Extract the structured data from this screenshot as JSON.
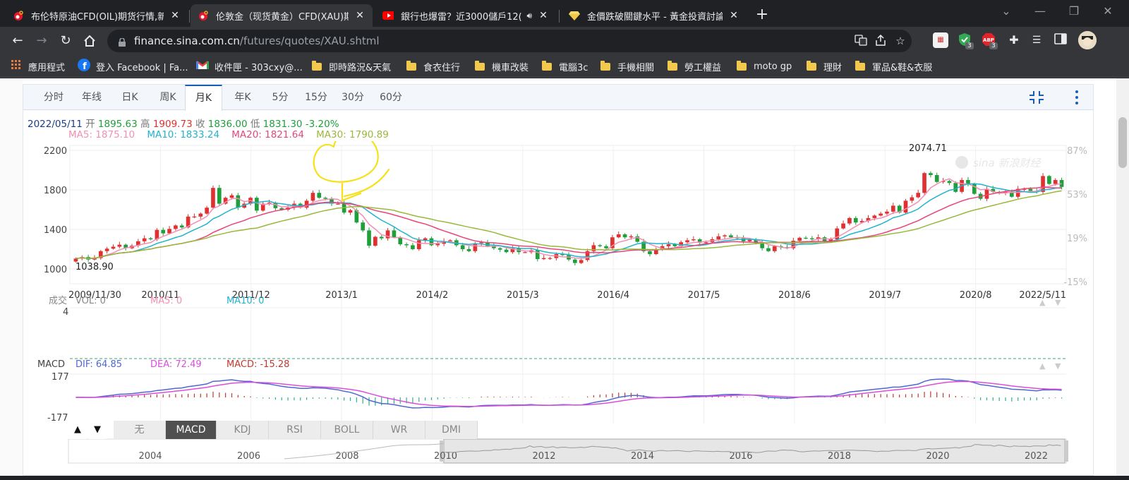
{
  "tabs": [
    {
      "title": "布伦特原油CFD(OIL)期货行情,新",
      "active": false
    },
    {
      "title": "伦敦金（现货黄金）CFD(XAU)期",
      "active": true
    },
    {
      "title": "銀行也爆雷？近3000儲戶12(",
      "active": false
    },
    {
      "title": "金價跌破關鍵水平 - 黃金投資討論",
      "active": false
    }
  ],
  "toolbar": {
    "url_host": "finance.sina.com.cn",
    "url_path": "/futures/quotes/XAU.shtml",
    "ext_badges": [
      "3",
      "3"
    ]
  },
  "bookmarks": [
    {
      "label": "應用程式",
      "icon": "apps-grid-icon"
    },
    {
      "label": "登入 Facebook | Fa...",
      "icon": "facebook-icon"
    },
    {
      "label": "收件匣 - 303cxy@...",
      "icon": "gmail-icon"
    },
    {
      "label": "即時路況&天氣",
      "icon": "folder-icon"
    },
    {
      "label": "食衣住行",
      "icon": "folder-icon"
    },
    {
      "label": "機車改裝",
      "icon": "folder-icon"
    },
    {
      "label": "電腦3c",
      "icon": "folder-icon"
    },
    {
      "label": "手機相關",
      "icon": "folder-icon"
    },
    {
      "label": "勞工權益",
      "icon": "folder-icon"
    },
    {
      "label": "moto gp",
      "icon": "folder-icon"
    },
    {
      "label": "理財",
      "icon": "folder-icon"
    },
    {
      "label": "軍品&鞋&衣服",
      "icon": "folder-icon"
    }
  ],
  "periods": [
    "分时",
    "年线",
    "日K",
    "周K",
    "月K",
    "年K",
    "5分",
    "15分",
    "30分",
    "60分"
  ],
  "active_period": "月K",
  "ohlc": {
    "date": "2022/05/11",
    "open_label": "开",
    "open": "1895.63",
    "high_label": "高",
    "high": "1909.73",
    "close_label": "收",
    "close": "1836.00",
    "low_label": "低",
    "low": "1831.30",
    "change": "-3.20%"
  },
  "ma": {
    "ma5": "MA5: 1875.10",
    "ma10": "MA10: 1833.24",
    "ma20": "MA20: 1821.64",
    "ma30": "MA30: 1790.89"
  },
  "colors": {
    "up": "#e03030",
    "down": "#1e9f3a",
    "ma5": "#f28fb3",
    "ma10": "#20b5cc",
    "ma20": "#e8457a",
    "ma30": "#9ab83a",
    "annotation": "#f5e11a"
  },
  "chart_data": {
    "type": "candlestick",
    "title": "",
    "xlabel": "",
    "ylabel": "",
    "ylim": [
      850,
      2250
    ],
    "y_ticks": [
      "2200",
      "1800",
      "1400",
      "1000"
    ],
    "right_ticks": [
      "87%",
      "53%",
      "19%",
      "-15%"
    ],
    "x_ticks": [
      "2009/11/30",
      "2010/11",
      "2011/12",
      "2013/1",
      "2014/2",
      "2015/3",
      "2016/4",
      "2017/5",
      "2018/6",
      "2019/7",
      "2020/8",
      "2022/5/11"
    ],
    "annotations": {
      "max_label": "2074.71",
      "min_label": "1038.90"
    },
    "close_series": [
      1105,
      1120,
      1095,
      1110,
      1180,
      1205,
      1225,
      1245,
      1210,
      1235,
      1280,
      1310,
      1300,
      1395,
      1360,
      1405,
      1440,
      1420,
      1530,
      1530,
      1560,
      1620,
      1820,
      1660,
      1720,
      1745,
      1620,
      1660,
      1720,
      1590,
      1660,
      1670,
      1615,
      1600,
      1620,
      1660,
      1620,
      1690,
      1770,
      1720,
      1710,
      1660,
      1660,
      1570,
      1595,
      1470,
      1390,
      1235,
      1325,
      1310,
      1390,
      1320,
      1250,
      1240,
      1200,
      1290,
      1310,
      1240,
      1255,
      1280,
      1290,
      1240,
      1200,
      1180,
      1260,
      1270,
      1230,
      1210,
      1195,
      1170,
      1210,
      1170,
      1170,
      1190,
      1100,
      1110,
      1110,
      1150,
      1140,
      1095,
      1060,
      1090,
      1180,
      1240,
      1230,
      1210,
      1320,
      1350,
      1320,
      1330,
      1275,
      1180,
      1150,
      1200,
      1230,
      1250,
      1230,
      1270,
      1290,
      1300,
      1265,
      1270,
      1300,
      1330,
      1340,
      1320,
      1310,
      1280,
      1295,
      1265,
      1210,
      1180,
      1230,
      1220,
      1210,
      1285,
      1315,
      1310,
      1300,
      1320,
      1280,
      1300,
      1410,
      1460,
      1515,
      1470,
      1485,
      1515,
      1540,
      1560,
      1580,
      1640,
      1570,
      1690,
      1725,
      1770,
      1970,
      1950,
      1880,
      1890,
      1870,
      1780,
      1900,
      1860,
      1760,
      1710,
      1810,
      1780,
      1770,
      1780,
      1730,
      1810,
      1810,
      1790,
      1780,
      1940,
      1860,
      1900,
      1830
    ],
    "ma5_series_end": 1875.1,
    "ma10_series_end": 1833.24,
    "ma20_series_end": 1821.64,
    "ma30_series_end": 1790.89
  },
  "volume_panel": {
    "label": "成交",
    "vol": "VOL: 0",
    "ma5": "MA5: 0",
    "ma10": "MA10: 0",
    "tick": "4"
  },
  "macd_panel": {
    "label": "MACD",
    "dif": "DIF: 64.85",
    "dea": "DEA: 72.49",
    "macd": "MACD: -15.28",
    "tick_top": "177",
    "tick_bottom": "-177"
  },
  "indicator_tabs": [
    "无",
    "MACD",
    "KDJ",
    "RSI",
    "BOLL",
    "WR",
    "DMI"
  ],
  "active_indicator": "MACD",
  "navigator_years": [
    "2004",
    "2006",
    "2008",
    "2010",
    "2012",
    "2014",
    "2016",
    "2018",
    "2020",
    "2022"
  ]
}
